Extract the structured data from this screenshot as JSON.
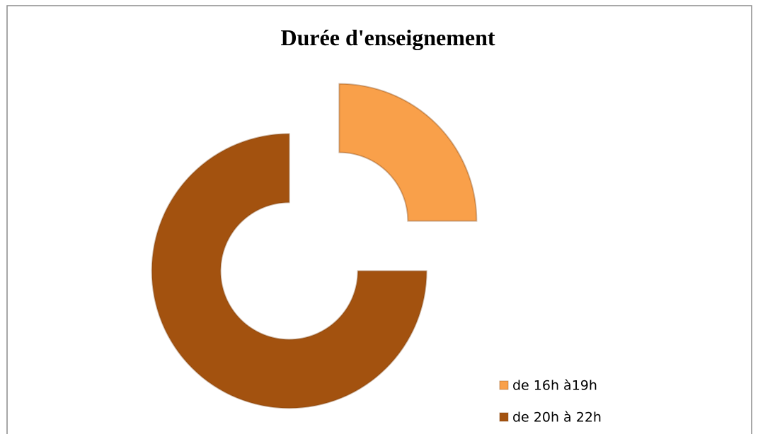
{
  "chart_data": {
    "type": "doughnut",
    "title": "Durée d'enseignement",
    "categories": [
      "de 16h à19h",
      "de 20h à 22h"
    ],
    "values": [
      25,
      75
    ],
    "colors": [
      "#f9a04a",
      "#a3520f"
    ],
    "legend": "bottom-right",
    "exploded": true
  }
}
